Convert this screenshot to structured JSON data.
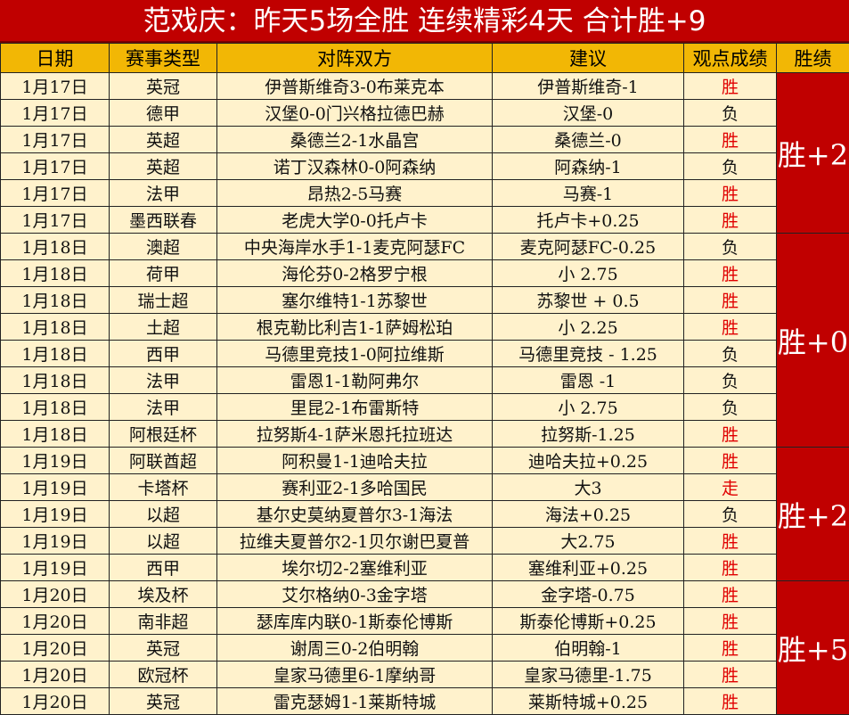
{
  "title": "范戏庆：昨天5场全胜  连续精彩4天  合计胜+9",
  "headers": [
    "日期",
    "赛事类型",
    "对阵双方",
    "建议",
    "观点成绩",
    "胜绩"
  ],
  "colors": {
    "title_bg": "#c00000",
    "header_bg": "#f2b705",
    "cell_bg": "#fff2cc",
    "win_text": "#e00000"
  },
  "rows": [
    {
      "date": "1月17日",
      "league": "英冠",
      "match": "伊普斯维奇3-0布莱克本",
      "tip": "伊普斯维奇-1",
      "result": "胜"
    },
    {
      "date": "1月17日",
      "league": "德甲",
      "match": "汉堡0-0门兴格拉德巴赫",
      "tip": "汉堡-0",
      "result": "负"
    },
    {
      "date": "1月17日",
      "league": "英超",
      "match": "桑德兰2-1水晶宫",
      "tip": "桑德兰-0",
      "result": "胜"
    },
    {
      "date": "1月17日",
      "league": "英超",
      "match": "诺丁汉森林0-0阿森纳",
      "tip": "阿森纳-1",
      "result": "负"
    },
    {
      "date": "1月17日",
      "league": "法甲",
      "match": "昂热2-5马赛",
      "tip": "马赛-1",
      "result": "胜"
    },
    {
      "date": "1月17日",
      "league": "墨西联春",
      "match": "老虎大学0-0托卢卡",
      "tip": "托卢卡+0.25",
      "result": "胜"
    },
    {
      "date": "1月18日",
      "league": "澳超",
      "match": "中央海岸水手1-1麦克阿瑟FC",
      "tip": "麦克阿瑟FC-0.25",
      "result": "负"
    },
    {
      "date": "1月18日",
      "league": "荷甲",
      "match": "海伦芬0-2格罗宁根",
      "tip": "小 2.75",
      "result": "胜"
    },
    {
      "date": "1月18日",
      "league": "瑞士超",
      "match": "塞尔维特1-1苏黎世",
      "tip": "苏黎世 + 0.5",
      "result": "胜"
    },
    {
      "date": "1月18日",
      "league": "土超",
      "match": "根克勒比利吉1-1萨姆松珀",
      "tip": "小 2.25",
      "result": "胜"
    },
    {
      "date": "1月18日",
      "league": "西甲",
      "match": "马德里竞技1-0阿拉维斯",
      "tip": "马德里竞技 - 1.25",
      "result": "负"
    },
    {
      "date": "1月18日",
      "league": "法甲",
      "match": "雷恩1-1勒阿弗尔",
      "tip": "雷恩 -1",
      "result": "负"
    },
    {
      "date": "1月18日",
      "league": "法甲",
      "match": "里昆2-1布雷斯特",
      "tip": "小 2.75",
      "result": "负"
    },
    {
      "date": "1月18日",
      "league": "阿根廷杯",
      "match": "拉努斯4-1萨米恩托拉班达",
      "tip": "拉努斯-1.25",
      "result": "胜"
    },
    {
      "date": "1月19日",
      "league": "阿联酋超",
      "match": "阿积曼1-1迪哈夫拉",
      "tip": "迪哈夫拉+0.25",
      "result": "胜"
    },
    {
      "date": "1月19日",
      "league": "卡塔杯",
      "match": "赛利亚2-1多哈国民",
      "tip": "大3",
      "result": "走"
    },
    {
      "date": "1月19日",
      "league": "以超",
      "match": "基尔史莫纳夏普尔3-1海法",
      "tip": "海法+0.25",
      "result": "负"
    },
    {
      "date": "1月19日",
      "league": "以超",
      "match": "拉维夫夏普尔2-1贝尔谢巴夏普",
      "tip": "大2.75",
      "result": "胜"
    },
    {
      "date": "1月19日",
      "league": "西甲",
      "match": "埃尔切2-2塞维利亚",
      "tip": "塞维利亚+0.25",
      "result": "胜"
    },
    {
      "date": "1月20日",
      "league": "埃及杯",
      "match": "艾尔格纳0-3金字塔",
      "tip": "金字塔-0.75",
      "result": "胜"
    },
    {
      "date": "1月20日",
      "league": "南非超",
      "match": "瑟库库内联0-1斯泰伦博斯",
      "tip": "斯泰伦博斯+0.25",
      "result": "胜"
    },
    {
      "date": "1月20日",
      "league": "英冠",
      "match": "谢周三0-2伯明翰",
      "tip": "伯明翰-1",
      "result": "胜"
    },
    {
      "date": "1月20日",
      "league": "欧冠杯",
      "match": "皇家马德里6-1摩纳哥",
      "tip": "皇家马德里-1.75",
      "result": "胜"
    },
    {
      "date": "1月20日",
      "league": "英冠",
      "match": "雷克瑟姆1-1莱斯特城",
      "tip": "莱斯特城+0.25",
      "result": "胜"
    }
  ],
  "summaries": [
    {
      "label": "胜+2",
      "rows": 6
    },
    {
      "label": "胜+0",
      "rows": 8
    },
    {
      "label": "胜+2",
      "rows": 5
    },
    {
      "label": "胜+5",
      "rows": 5
    }
  ]
}
